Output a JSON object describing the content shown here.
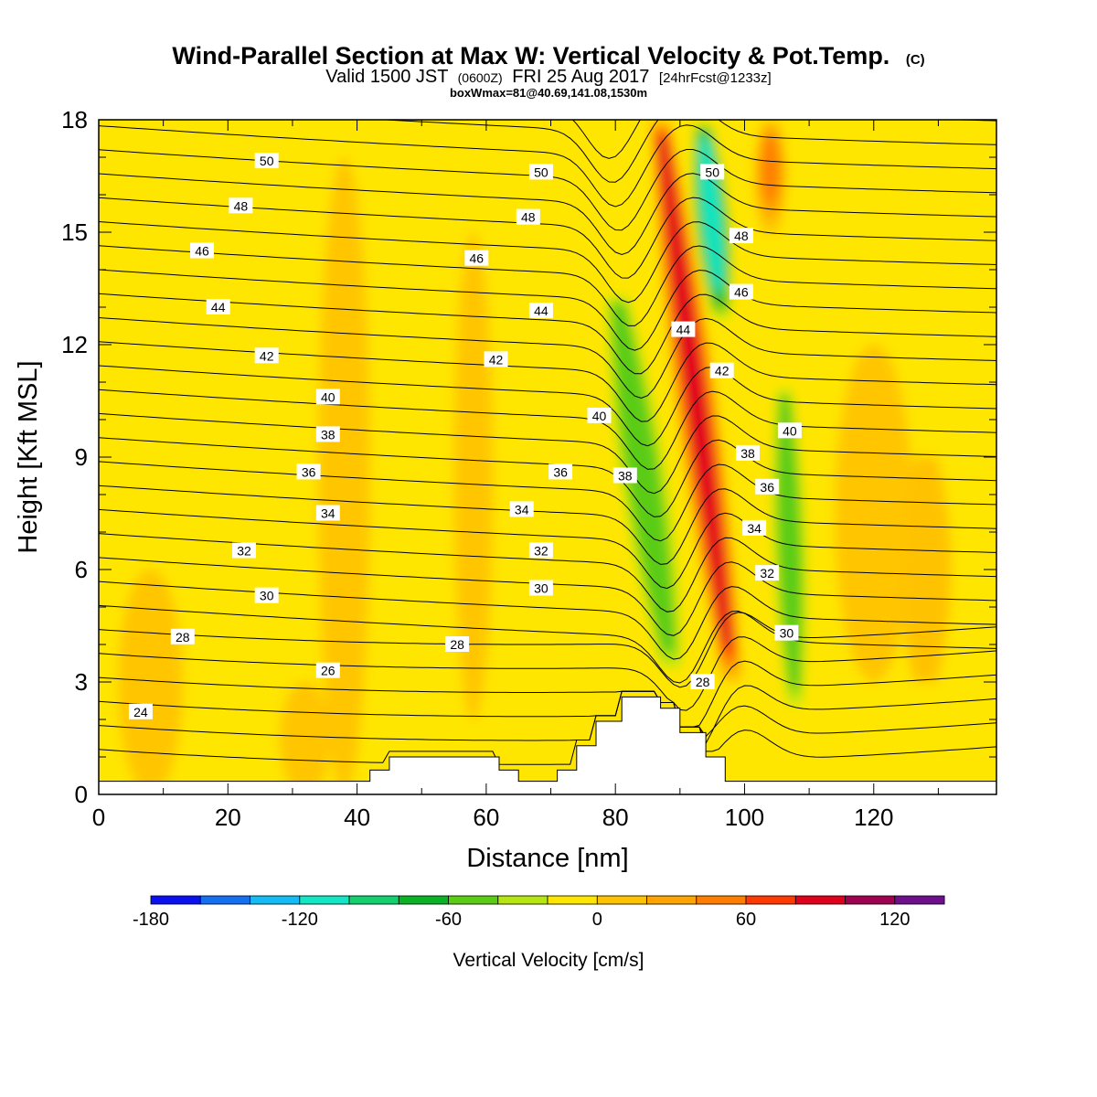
{
  "chart_data": {
    "type": "heatmap",
    "title": "Wind-Parallel Section at Max W: Vertical Velocity & Pot.Temp.",
    "title_mark": "(C)",
    "subtitle_main": "Valid 1500 JST",
    "subtitle_z": "(0600Z)",
    "subtitle_date": "FRI 25 Aug 2017",
    "subtitle_fcst": "[24hrFcst@1233z]",
    "info_line": "boxWmax=81@40.69,141.08,1530m",
    "xlabel": "Distance [nm]",
    "ylabel": "Height [Kft MSL]",
    "xlim": [
      0,
      139
    ],
    "ylim": [
      0,
      18
    ],
    "x_ticks": [
      0,
      20,
      40,
      60,
      80,
      100,
      120
    ],
    "y_ticks": [
      0,
      3,
      6,
      9,
      12,
      15,
      18
    ],
    "colorbar": {
      "label": "Vertical Velocity [cm/s]",
      "range": [
        -180,
        140
      ],
      "tick_values": [
        -180,
        -120,
        -60,
        0,
        60,
        120
      ],
      "tick_labels": [
        "-180",
        "-120",
        "-60",
        "0",
        "60",
        "120"
      ],
      "colors": [
        "#0a10f0",
        "#1470f0",
        "#14bcf5",
        "#12e6c4",
        "#12d06e",
        "#0ab226",
        "#5acc14",
        "#b6e610",
        "#ffe600",
        "#ffc200",
        "#ffa400",
        "#ff7e00",
        "#ff3a00",
        "#e0001c",
        "#a00050",
        "#6e0f8c"
      ]
    },
    "vertical_velocity_features": [
      {
        "kind": "downdraft",
        "x_center": 84.5,
        "y_bottom": 3.0,
        "y_top": 13.5,
        "tilt": 0.85,
        "half_width": 4.5,
        "peak": -65
      },
      {
        "kind": "downdraft",
        "x_center": 95.0,
        "y_bottom": 12.5,
        "y_top": 18.0,
        "tilt": 0.55,
        "half_width": 3.0,
        "peak": -120
      },
      {
        "kind": "updraft",
        "x_center": 92.5,
        "y_bottom": 3.0,
        "y_top": 18.0,
        "tilt": 0.75,
        "half_width": 3.2,
        "peak": 95
      },
      {
        "kind": "downdraft",
        "x_center": 107.0,
        "y_bottom": 2.0,
        "y_top": 11.0,
        "tilt": 0.2,
        "half_width": 3.2,
        "peak": -50
      },
      {
        "kind": "updraft",
        "x_center": 104.0,
        "y_bottom": 15.0,
        "y_top": 18.0,
        "tilt": 0.0,
        "half_width": 2.5,
        "peak": 55
      },
      {
        "kind": "updraft",
        "x_center": 128.0,
        "y_bottom": 3.0,
        "y_top": 9.0,
        "tilt": 0.0,
        "half_width": 4.0,
        "peak": 20
      }
    ],
    "terrain": [
      {
        "x": 0,
        "height": 0.35
      },
      {
        "x": 42,
        "height": 0.35
      },
      {
        "x": 42,
        "height": 0.65
      },
      {
        "x": 45,
        "height": 0.65
      },
      {
        "x": 45,
        "height": 1.0
      },
      {
        "x": 62,
        "height": 1.0
      },
      {
        "x": 62,
        "height": 0.65
      },
      {
        "x": 65,
        "height": 0.65
      },
      {
        "x": 65,
        "height": 0.35
      },
      {
        "x": 71,
        "height": 0.35
      },
      {
        "x": 71,
        "height": 0.65
      },
      {
        "x": 74,
        "height": 0.65
      },
      {
        "x": 74,
        "height": 1.3
      },
      {
        "x": 77,
        "height": 1.3
      },
      {
        "x": 77,
        "height": 1.95
      },
      {
        "x": 81,
        "height": 1.95
      },
      {
        "x": 81,
        "height": 2.6
      },
      {
        "x": 87,
        "height": 2.6
      },
      {
        "x": 87,
        "height": 2.3
      },
      {
        "x": 90,
        "height": 2.3
      },
      {
        "x": 90,
        "height": 1.65
      },
      {
        "x": 94,
        "height": 1.65
      },
      {
        "x": 94,
        "height": 1.0
      },
      {
        "x": 97,
        "height": 1.0
      },
      {
        "x": 97,
        "height": 0.35
      },
      {
        "x": 139,
        "height": 0.35
      }
    ],
    "theta_levels": [
      24,
      25,
      26,
      27,
      28,
      29,
      30,
      31,
      32,
      33,
      34,
      35,
      36,
      37,
      38,
      39,
      40,
      41,
      42,
      43,
      44,
      45,
      46,
      47,
      48,
      49,
      50,
      51,
      52
    ],
    "theta_labels": [
      {
        "value": "24",
        "x": 6.5,
        "y": 2.2
      },
      {
        "value": "26",
        "x": 35.5,
        "y": 3.3
      },
      {
        "value": "28",
        "x": 13.0,
        "y": 4.2
      },
      {
        "value": "28",
        "x": 55.5,
        "y": 4.0
      },
      {
        "value": "28",
        "x": 93.5,
        "y": 3.0
      },
      {
        "value": "30",
        "x": 26.0,
        "y": 5.3
      },
      {
        "value": "30",
        "x": 68.5,
        "y": 5.5
      },
      {
        "value": "30",
        "x": 106.5,
        "y": 4.3
      },
      {
        "value": "32",
        "x": 22.5,
        "y": 6.5
      },
      {
        "value": "32",
        "x": 68.5,
        "y": 6.5
      },
      {
        "value": "32",
        "x": 103.5,
        "y": 5.9
      },
      {
        "value": "34",
        "x": 35.5,
        "y": 7.5
      },
      {
        "value": "34",
        "x": 65.5,
        "y": 7.6
      },
      {
        "value": "34",
        "x": 101.5,
        "y": 7.1
      },
      {
        "value": "36",
        "x": 32.5,
        "y": 8.6
      },
      {
        "value": "36",
        "x": 71.5,
        "y": 8.6
      },
      {
        "value": "36",
        "x": 103.5,
        "y": 8.2
      },
      {
        "value": "38",
        "x": 35.5,
        "y": 9.6
      },
      {
        "value": "38",
        "x": 81.5,
        "y": 8.5
      },
      {
        "value": "38",
        "x": 100.5,
        "y": 9.1
      },
      {
        "value": "40",
        "x": 35.5,
        "y": 10.6
      },
      {
        "value": "40",
        "x": 77.5,
        "y": 10.1
      },
      {
        "value": "40",
        "x": 107.0,
        "y": 9.7
      },
      {
        "value": "42",
        "x": 26.0,
        "y": 11.7
      },
      {
        "value": "42",
        "x": 61.5,
        "y": 11.6
      },
      {
        "value": "42",
        "x": 96.5,
        "y": 11.3
      },
      {
        "value": "44",
        "x": 18.5,
        "y": 13.0
      },
      {
        "value": "44",
        "x": 68.5,
        "y": 12.9
      },
      {
        "value": "44",
        "x": 90.5,
        "y": 12.4
      },
      {
        "value": "46",
        "x": 16.0,
        "y": 14.5
      },
      {
        "value": "46",
        "x": 58.5,
        "y": 14.3
      },
      {
        "value": "46",
        "x": 99.5,
        "y": 13.4
      },
      {
        "value": "48",
        "x": 22.0,
        "y": 15.7
      },
      {
        "value": "48",
        "x": 66.5,
        "y": 15.4
      },
      {
        "value": "48",
        "x": 99.5,
        "y": 14.9
      },
      {
        "value": "50",
        "x": 26.0,
        "y": 16.9
      },
      {
        "value": "50",
        "x": 68.5,
        "y": 16.6
      },
      {
        "value": "50",
        "x": 95.0,
        "y": 16.6
      }
    ]
  }
}
